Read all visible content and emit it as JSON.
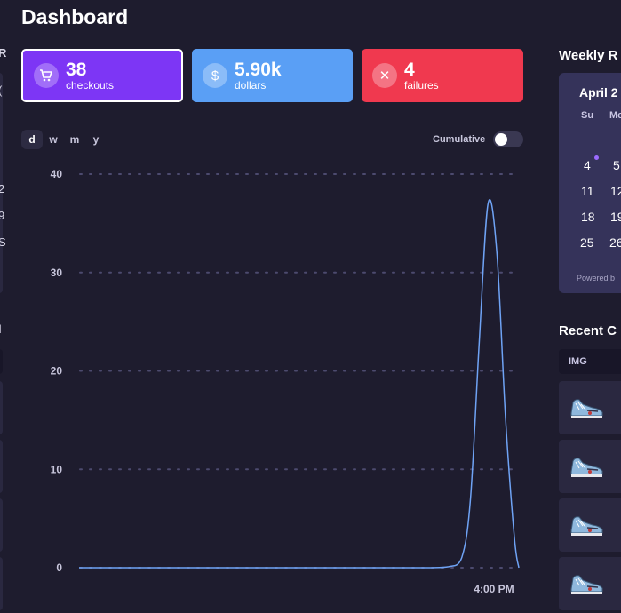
{
  "page": {
    "title": "Dashboard"
  },
  "stats": [
    {
      "value": "38",
      "label": "checkouts",
      "icon": "cart-icon",
      "color": "#7d36f5"
    },
    {
      "value": "5.90k",
      "label": "dollars",
      "icon": "dollar-icon",
      "color": "#5a9ff5"
    },
    {
      "value": "4",
      "label": "failures",
      "icon": "close-icon",
      "color": "#f0394f"
    }
  ],
  "range_tabs": [
    "d",
    "w",
    "m",
    "y"
  ],
  "active_range": "d",
  "cumulative": {
    "label": "Cumulative",
    "enabled": false
  },
  "chart_data": {
    "type": "line",
    "y_ticks": [
      "40",
      "30",
      "20",
      "10",
      "0"
    ],
    "ylim": [
      0,
      40
    ],
    "x_tick_label": "4:00 PM",
    "x": [
      0,
      5,
      10,
      15,
      20,
      25,
      30,
      35,
      40,
      45,
      50,
      55,
      60,
      65,
      70,
      75,
      80,
      84,
      87,
      89,
      91,
      93,
      95,
      97,
      99,
      100
    ],
    "values": [
      0,
      0,
      0,
      0,
      0,
      0,
      0,
      0,
      0,
      0,
      0,
      0,
      0,
      0,
      0,
      0,
      0,
      0.1,
      1,
      7,
      23,
      37,
      32,
      15,
      3,
      0
    ],
    "grid": true,
    "line_color": "#6fa3f5"
  },
  "weekly": {
    "title": "Weekly R",
    "month": "April 2",
    "dow": [
      "Su",
      "Mo"
    ],
    "weeks": [
      [
        "4",
        "5"
      ],
      [
        "11",
        "12"
      ],
      [
        "18",
        "19"
      ],
      [
        "25",
        "26"
      ]
    ],
    "powered": "Powered b"
  },
  "recent": {
    "title": "Recent C",
    "col_img": "IMG",
    "row_count": 4
  },
  "left_fragments": [
    "R",
    "(",
    "2",
    "9",
    "S",
    "l"
  ]
}
